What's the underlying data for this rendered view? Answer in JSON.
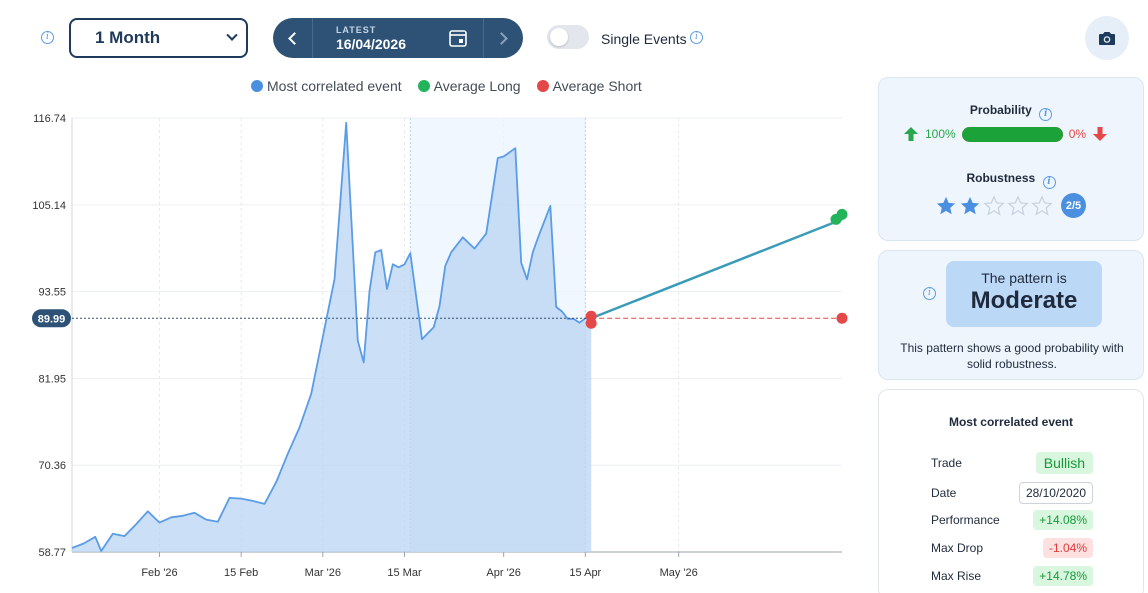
{
  "toolbar": {
    "period": "1 Month",
    "latest_label": "LATEST",
    "latest_date": "16/04/2026",
    "single_events_label": "Single Events",
    "single_events_on": false
  },
  "legend": [
    {
      "label": "Most correlated event",
      "color": "#4a8fe0"
    },
    {
      "label": "Average Long",
      "color": "#22b45a"
    },
    {
      "label": "Average Short",
      "color": "#e54848"
    }
  ],
  "chart_data": {
    "type": "area",
    "y_ticks": [
      "116.74",
      "105.14",
      "93.55",
      "81.95",
      "70.36",
      "58.77"
    ],
    "x_ticks": [
      "Feb '26",
      "15 Feb",
      "Mar '26",
      "15 Mar",
      "Apr '26",
      "15 Apr",
      "May '26"
    ],
    "current_value_label": "89.99",
    "ylim": [
      58.77,
      116.74
    ],
    "xlim": [
      "2026-01-17",
      "2026-05-29"
    ],
    "highlight_range": [
      "2026-03-16",
      "2026-04-15"
    ],
    "series": [
      {
        "name": "Most correlated event",
        "x": [
          "2026-01-17",
          "2026-01-19",
          "2026-01-21",
          "2026-01-22",
          "2026-01-24",
          "2026-01-26",
          "2026-01-28",
          "2026-01-30",
          "2026-02-01",
          "2026-02-03",
          "2026-02-05",
          "2026-02-07",
          "2026-02-09",
          "2026-02-11",
          "2026-02-13",
          "2026-02-15",
          "2026-02-17",
          "2026-02-19",
          "2026-02-21",
          "2026-02-23",
          "2026-02-25",
          "2026-02-27",
          "2026-03-01",
          "2026-03-03",
          "2026-03-05",
          "2026-03-07",
          "2026-03-08",
          "2026-03-09",
          "2026-03-10",
          "2026-03-11",
          "2026-03-12",
          "2026-03-13",
          "2026-03-14",
          "2026-03-15",
          "2026-03-16",
          "2026-03-18",
          "2026-03-20",
          "2026-03-21",
          "2026-03-22",
          "2026-03-23",
          "2026-03-25",
          "2026-03-27",
          "2026-03-29",
          "2026-03-31",
          "2026-04-01",
          "2026-04-03",
          "2026-04-04",
          "2026-04-05",
          "2026-04-06",
          "2026-04-07",
          "2026-04-09",
          "2026-04-10",
          "2026-04-11",
          "2026-04-12",
          "2026-04-13",
          "2026-04-14",
          "2026-04-15",
          "2026-04-16"
        ],
        "values": [
          59.3,
          59.9,
          60.8,
          58.9,
          61.2,
          60.9,
          62.5,
          64.2,
          62.7,
          63.4,
          63.6,
          64.0,
          63.1,
          62.8,
          66.0,
          65.9,
          65.6,
          65.2,
          68.1,
          71.9,
          75.4,
          79.9,
          87.5,
          95.2,
          116.1,
          87.0,
          84.1,
          93.6,
          98.8,
          99.1,
          93.9,
          97.2,
          96.8,
          97.2,
          98.7,
          87.2,
          88.8,
          91.6,
          97.0,
          98.8,
          100.8,
          99.3,
          101.3,
          111.4,
          111.6,
          112.7,
          97.4,
          95.2,
          98.8,
          101.0,
          105.0,
          91.5,
          90.9,
          89.9,
          89.9,
          89.4,
          89.99,
          89.99
        ]
      },
      {
        "name": "Average Long",
        "x": [
          "2026-04-16",
          "2026-05-29"
        ],
        "values": [
          89.99,
          103.2
        ]
      },
      {
        "name": "Average Short",
        "x": [
          "2026-04-16",
          "2026-05-29"
        ],
        "values": [
          89.99,
          89.99
        ]
      }
    ]
  },
  "probability": {
    "title": "Probability",
    "long_pct": "100%",
    "short_pct": "0%",
    "long_fraction": 1.0
  },
  "robustness": {
    "title": "Robustness",
    "score": 2,
    "max": 5,
    "badge": "2/5"
  },
  "pattern": {
    "prefix": "The pattern is",
    "level": "Moderate",
    "description": "This pattern shows a good probability with solid robustness."
  },
  "event": {
    "title": "Most correlated event",
    "rows": [
      {
        "label": "Trade",
        "value": "Bullish",
        "kind": "bull"
      },
      {
        "label": "Date",
        "value": "28/10/2020",
        "kind": "date"
      },
      {
        "label": "Performance",
        "value": "+14.08%",
        "kind": "pos"
      },
      {
        "label": "Max Drop",
        "value": "-1.04%",
        "kind": "neg"
      },
      {
        "label": "Max Rise",
        "value": "+14.78%",
        "kind": "pos"
      }
    ]
  },
  "colors": {
    "accent": "#2d5276",
    "series_line": "#5b9ce6",
    "long": "#22b45a",
    "short": "#e54848",
    "projection": "#3a9bb8"
  }
}
